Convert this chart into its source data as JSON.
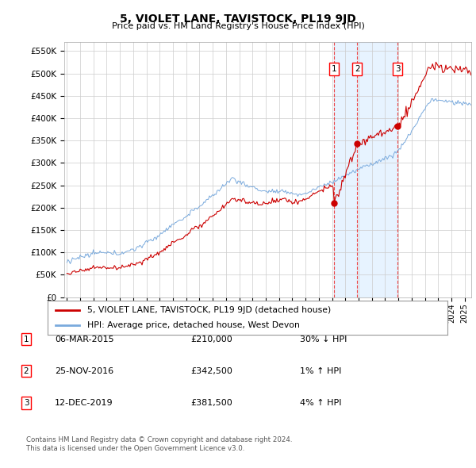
{
  "title": "5, VIOLET LANE, TAVISTOCK, PL19 9JD",
  "subtitle": "Price paid vs. HM Land Registry's House Price Index (HPI)",
  "ylabel_ticks": [
    "£0",
    "£50K",
    "£100K",
    "£150K",
    "£200K",
    "£250K",
    "£300K",
    "£350K",
    "£400K",
    "£450K",
    "£500K",
    "£550K"
  ],
  "ytick_vals": [
    0,
    50000,
    100000,
    150000,
    200000,
    250000,
    300000,
    350000,
    400000,
    450000,
    500000,
    550000
  ],
  "ylim": [
    0,
    570000
  ],
  "xlim_start": 1994.8,
  "xlim_end": 2025.5,
  "sales": [
    {
      "date_num": 2015.17,
      "price": 210000,
      "label": "1"
    },
    {
      "date_num": 2016.9,
      "price": 342500,
      "label": "2"
    },
    {
      "date_num": 2019.95,
      "price": 381500,
      "label": "3"
    }
  ],
  "vline_dates": [
    2015.17,
    2016.9,
    2019.95
  ],
  "legend_property": "5, VIOLET LANE, TAVISTOCK, PL19 9JD (detached house)",
  "legend_hpi": "HPI: Average price, detached house, West Devon",
  "table_rows": [
    {
      "num": "1",
      "date": "06-MAR-2015",
      "price": "£210,000",
      "change": "30% ↓ HPI"
    },
    {
      "num": "2",
      "date": "25-NOV-2016",
      "price": "£342,500",
      "change": "1% ↑ HPI"
    },
    {
      "num": "3",
      "date": "12-DEC-2019",
      "price": "£381,500",
      "change": "4% ↑ HPI"
    }
  ],
  "footnote1": "Contains HM Land Registry data © Crown copyright and database right 2024.",
  "footnote2": "This data is licensed under the Open Government Licence v3.0.",
  "hpi_color": "#7aaadd",
  "property_color": "#cc0000",
  "vline_color": "#ee3333",
  "grid_color": "#cccccc",
  "background_color": "#ffffff",
  "shade_color": "#ddeeff"
}
